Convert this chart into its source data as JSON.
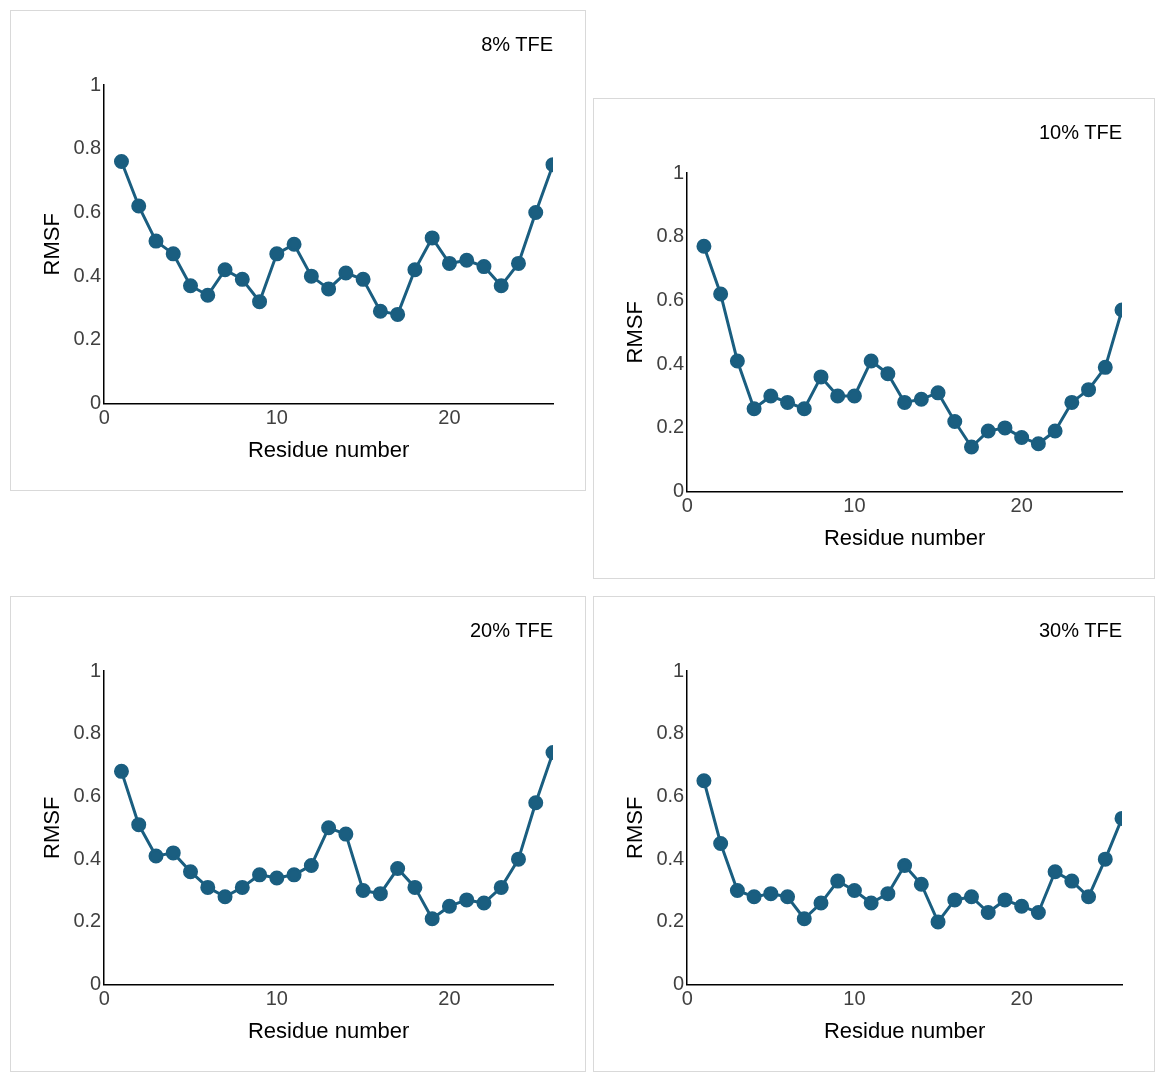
{
  "chart_data": [
    {
      "type": "line",
      "title": "8% TFE",
      "xlabel": "Residue number",
      "ylabel": "RMSF",
      "x": [
        1,
        2,
        3,
        4,
        5,
        6,
        7,
        8,
        9,
        10,
        11,
        12,
        13,
        14,
        15,
        16,
        17,
        18,
        19,
        20,
        21,
        22,
        23,
        24,
        25,
        26
      ],
      "series": [
        {
          "color": "#1a5e80",
          "values": [
            0.76,
            0.62,
            0.51,
            0.47,
            0.37,
            0.34,
            0.42,
            0.39,
            0.32,
            0.47,
            0.5,
            0.4,
            0.36,
            0.41,
            0.39,
            0.29,
            0.28,
            0.42,
            0.52,
            0.44,
            0.45,
            0.43,
            0.37,
            0.44,
            0.6,
            0.75
          ]
        }
      ],
      "xlim": [
        0,
        26
      ],
      "xticks": [
        0,
        10,
        20
      ],
      "ylim": [
        0,
        1
      ],
      "yticks": [
        0,
        0.2,
        0.4,
        0.6,
        0.8,
        1
      ],
      "grid": false,
      "legend": false,
      "marker": "circle",
      "line_style": "solid"
    },
    {
      "type": "line",
      "title": "10% TFE",
      "xlabel": "Residue number",
      "ylabel": "RMSF",
      "x": [
        1,
        2,
        3,
        4,
        5,
        6,
        7,
        8,
        9,
        10,
        11,
        12,
        13,
        14,
        15,
        16,
        17,
        18,
        19,
        20,
        21,
        22,
        23,
        24,
        25,
        26
      ],
      "series": [
        {
          "color": "#1a5e80",
          "values": [
            0.77,
            0.62,
            0.41,
            0.26,
            0.3,
            0.28,
            0.26,
            0.36,
            0.3,
            0.3,
            0.41,
            0.37,
            0.28,
            0.29,
            0.31,
            0.22,
            0.14,
            0.19,
            0.2,
            0.17,
            0.15,
            0.19,
            0.28,
            0.32,
            0.39,
            0.57
          ]
        }
      ],
      "xlim": [
        0,
        26
      ],
      "xticks": [
        0,
        10,
        20
      ],
      "ylim": [
        0,
        1
      ],
      "yticks": [
        0,
        0.2,
        0.4,
        0.6,
        0.8,
        1
      ],
      "grid": false,
      "legend": false,
      "marker": "circle",
      "line_style": "solid"
    },
    {
      "type": "line",
      "title": "20% TFE",
      "xlabel": "Residue number",
      "ylabel": "RMSF",
      "x": [
        1,
        2,
        3,
        4,
        5,
        6,
        7,
        8,
        9,
        10,
        11,
        12,
        13,
        14,
        15,
        16,
        17,
        18,
        19,
        20,
        21,
        22,
        23,
        24,
        25,
        26
      ],
      "series": [
        {
          "color": "#1a5e80",
          "values": [
            0.68,
            0.51,
            0.41,
            0.42,
            0.36,
            0.31,
            0.28,
            0.31,
            0.35,
            0.34,
            0.35,
            0.38,
            0.5,
            0.48,
            0.3,
            0.29,
            0.37,
            0.31,
            0.21,
            0.25,
            0.27,
            0.26,
            0.31,
            0.4,
            0.58,
            0.74
          ]
        }
      ],
      "xlim": [
        0,
        26
      ],
      "xticks": [
        0,
        10,
        20
      ],
      "ylim": [
        0,
        1
      ],
      "yticks": [
        0,
        0.2,
        0.4,
        0.6,
        0.8,
        1
      ],
      "grid": false,
      "legend": false,
      "marker": "circle",
      "line_style": "solid"
    },
    {
      "type": "line",
      "title": "30% TFE",
      "xlabel": "Residue number",
      "ylabel": "RMSF",
      "x": [
        1,
        2,
        3,
        4,
        5,
        6,
        7,
        8,
        9,
        10,
        11,
        12,
        13,
        14,
        15,
        16,
        17,
        18,
        19,
        20,
        21,
        22,
        23,
        24,
        25,
        26
      ],
      "series": [
        {
          "color": "#1a5e80",
          "values": [
            0.65,
            0.45,
            0.3,
            0.28,
            0.29,
            0.28,
            0.21,
            0.26,
            0.33,
            0.3,
            0.26,
            0.29,
            0.38,
            0.32,
            0.2,
            0.27,
            0.28,
            0.23,
            0.27,
            0.25,
            0.23,
            0.36,
            0.33,
            0.28,
            0.4,
            0.53
          ]
        }
      ],
      "xlim": [
        0,
        26
      ],
      "xticks": [
        0,
        10,
        20
      ],
      "ylim": [
        0,
        1
      ],
      "yticks": [
        0,
        0.2,
        0.4,
        0.6,
        0.8,
        1
      ],
      "grid": false,
      "legend": false,
      "marker": "circle",
      "line_style": "solid"
    }
  ]
}
